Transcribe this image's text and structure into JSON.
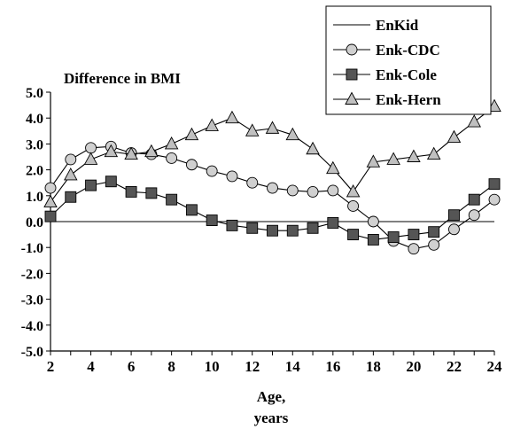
{
  "chart_data": {
    "type": "line",
    "title": "Difference in BMI",
    "xlabel_line1": "Age,",
    "xlabel_line2": "years",
    "ylabel": "",
    "x": [
      2,
      3,
      4,
      5,
      6,
      7,
      8,
      9,
      10,
      11,
      12,
      13,
      14,
      15,
      16,
      17,
      18,
      19,
      20,
      21,
      22,
      23,
      24
    ],
    "xlim": [
      2,
      24
    ],
    "ylim": [
      -5.0,
      5.0
    ],
    "x_ticks": [
      "2",
      "4",
      "6",
      "8",
      "10",
      "12",
      "14",
      "16",
      "18",
      "20",
      "22",
      "24"
    ],
    "y_ticks": [
      "5.0",
      "4.0",
      "3.0",
      "2.0",
      "1.0",
      "0.0",
      "-1.0",
      "-2.0",
      "-3.0",
      "-4.0",
      "-5.0"
    ],
    "grid": false,
    "legend_position": "top-right",
    "series": [
      {
        "name": "EnKid",
        "marker": "none",
        "values": [
          0,
          0,
          0,
          0,
          0,
          0,
          0,
          0,
          0,
          0,
          0,
          0,
          0,
          0,
          0,
          0,
          0,
          0,
          0,
          0,
          0,
          0,
          0
        ]
      },
      {
        "name": "Enk-CDC",
        "marker": "circle",
        "color": "#d0d0d0",
        "values": [
          1.3,
          2.4,
          2.85,
          2.9,
          2.65,
          2.6,
          2.45,
          2.2,
          1.95,
          1.75,
          1.5,
          1.3,
          1.2,
          1.15,
          1.2,
          0.6,
          0.0,
          -0.75,
          -1.05,
          -0.9,
          -0.3,
          0.25,
          0.85
        ]
      },
      {
        "name": "Enk-Cole",
        "marker": "square",
        "color": "#555555",
        "values": [
          0.2,
          0.95,
          1.4,
          1.55,
          1.15,
          1.1,
          0.85,
          0.45,
          0.05,
          -0.15,
          -0.25,
          -0.35,
          -0.35,
          -0.25,
          -0.05,
          -0.5,
          -0.7,
          -0.6,
          -0.5,
          -0.4,
          0.25,
          0.85,
          1.45
        ]
      },
      {
        "name": "Enk-Hern",
        "marker": "triangle",
        "color": "#c0c0c0",
        "values": [
          0.75,
          1.8,
          2.4,
          2.7,
          2.6,
          2.7,
          3.0,
          3.35,
          3.7,
          4.0,
          3.5,
          3.6,
          3.35,
          2.8,
          2.05,
          1.15,
          2.3,
          2.4,
          2.5,
          2.6,
          3.25,
          3.85,
          4.45
        ]
      }
    ]
  }
}
